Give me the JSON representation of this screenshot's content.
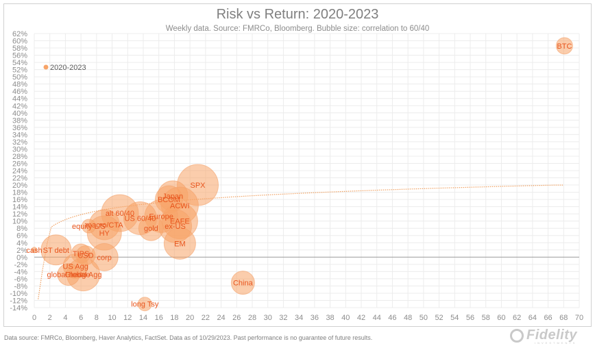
{
  "chart_data": {
    "type": "scatter",
    "subtype": "bubble",
    "title": "Risk vs Return: 2020-2023",
    "subtitle": "Weekly data.  Source: FMRCo, Bloomberg.  Bubble size: correlation to 60/40",
    "xlabel": "",
    "ylabel": "",
    "xlim": [
      0,
      70
    ],
    "ylim": [
      -14,
      62
    ],
    "x_ticks": [
      0,
      2,
      4,
      6,
      8,
      10,
      12,
      14,
      16,
      18,
      20,
      22,
      24,
      26,
      28,
      30,
      32,
      34,
      36,
      38,
      40,
      42,
      44,
      46,
      48,
      50,
      52,
      54,
      56,
      58,
      60,
      62,
      64,
      66,
      68,
      70
    ],
    "y_ticks": [
      "62%",
      "60%",
      "58%",
      "56%",
      "54%",
      "52%",
      "50%",
      "48%",
      "46%",
      "44%",
      "42%",
      "40%",
      "38%",
      "36%",
      "34%",
      "32%",
      "30%",
      "28%",
      "26%",
      "24%",
      "22%",
      "20%",
      "18%",
      "16%",
      "14%",
      "12%",
      "10%",
      "8%",
      "6%",
      "4%",
      "2%",
      "0%",
      "-2%",
      "-4%",
      "-6%",
      "-8%",
      "-10%",
      "-12%",
      "-14%"
    ],
    "grid": true,
    "legend": {
      "position": "upper-left",
      "entries": [
        "2020-2023"
      ]
    },
    "series": [
      {
        "name": "2020-2023",
        "color": "#f7a468",
        "label_color": "#e8541c",
        "points": [
          {
            "label": "BTC",
            "x": 68.1,
            "y": 58.6,
            "size": 12
          },
          {
            "label": "SPX",
            "x": 21.0,
            "y": 20.0,
            "size": 30
          },
          {
            "label": "Japan",
            "x": 17.8,
            "y": 17.0,
            "size": 22
          },
          {
            "label": "BCOM",
            "x": 17.3,
            "y": 16.0,
            "size": 20
          },
          {
            "label": "ACWI",
            "x": 18.7,
            "y": 14.3,
            "size": 27
          },
          {
            "label": "EAFE",
            "x": 18.7,
            "y": 10.0,
            "size": 26
          },
          {
            "label": "ex-US",
            "x": 18.1,
            "y": 8.6,
            "size": 24
          },
          {
            "label": "EM",
            "x": 18.7,
            "y": 3.8,
            "size": 23
          },
          {
            "label": "Europe",
            "x": 16.3,
            "y": 11.4,
            "size": 24
          },
          {
            "label": "gold",
            "x": 15.0,
            "y": 8.0,
            "size": 18
          },
          {
            "label": "US 60/40",
            "x": 13.6,
            "y": 10.8,
            "size": 24
          },
          {
            "label": "alt 60/40",
            "x": 11.0,
            "y": 12.2,
            "size": 27
          },
          {
            "label": "macro/CTA",
            "x": 9.0,
            "y": 9.0,
            "size": 22
          },
          {
            "label": "HY",
            "x": 9.0,
            "y": 6.7,
            "size": 25
          },
          {
            "label": "equity L/S",
            "x": 7.0,
            "y": 8.6,
            "size": 10
          },
          {
            "label": "ST debt",
            "x": 2.8,
            "y": 2.0,
            "size": 22
          },
          {
            "label": "cash",
            "x": 0.0,
            "y": 2.0,
            "size": 4
          },
          {
            "label": "TIPS",
            "x": 6.0,
            "y": 1.0,
            "size": 14
          },
          {
            "label": "USD",
            "x": 6.6,
            "y": 0.5,
            "size": 14
          },
          {
            "label": "corp",
            "x": 9.0,
            "y": 0.0,
            "size": 20
          },
          {
            "label": "US Agg",
            "x": 5.3,
            "y": -2.5,
            "size": 18
          },
          {
            "label": "Global Agg",
            "x": 6.3,
            "y": -4.8,
            "size": 24
          },
          {
            "label": "global hedge",
            "x": 4.4,
            "y": -4.8,
            "size": 16
          },
          {
            "label": "China",
            "x": 26.8,
            "y": -7.1,
            "size": 17
          },
          {
            "label": "long Tsy",
            "x": 14.2,
            "y": -13.0,
            "size": 10
          }
        ]
      }
    ],
    "trendline": {
      "type": "logarithmic",
      "style": "dotted",
      "color": "#f0a060",
      "x_range": [
        0.5,
        68
      ],
      "y_range_approx": [
        -13.5,
        20
      ]
    }
  },
  "footer": {
    "source_note": "Data source: FMRCo, Bloomberg, Haver Analytics, FactSet. Data as of 10/29/2023. Past performance is no guarantee of future results."
  },
  "logo": {
    "name": "Fidelity",
    "sub": "INVESTMENTS"
  }
}
